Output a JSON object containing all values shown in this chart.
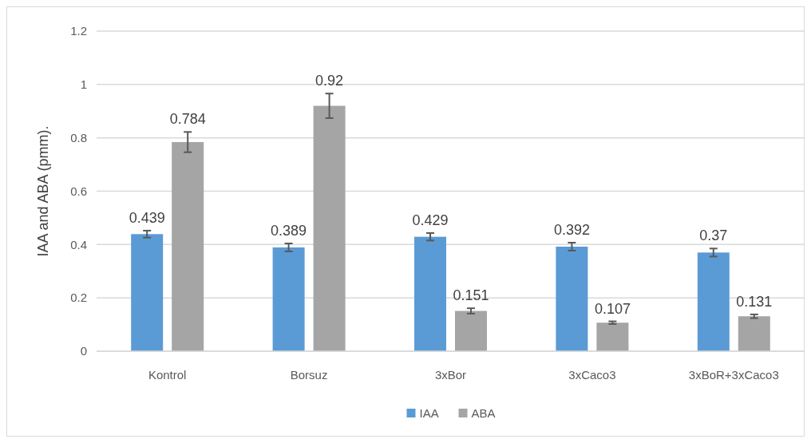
{
  "chart_data": {
    "type": "bar",
    "ylabel": "IAA and ABA (pmm).",
    "categories": [
      "Kontrol",
      "Borsuz",
      "3xBor",
      "3xCaco3",
      "3xBoR+3xCaco3"
    ],
    "series": [
      {
        "name": "IAA",
        "color": "#5b9bd5",
        "values": [
          0.439,
          0.389,
          0.429,
          0.392,
          0.37
        ],
        "errors": [
          0.013,
          0.015,
          0.014,
          0.015,
          0.015
        ]
      },
      {
        "name": "ABA",
        "color": "#a5a5a5",
        "values": [
          0.784,
          0.92,
          0.151,
          0.107,
          0.131
        ],
        "errors": [
          0.038,
          0.046,
          0.01,
          0.005,
          0.007
        ]
      }
    ],
    "ylim": [
      0,
      1.2
    ],
    "yticks": [
      0,
      0.2,
      0.4,
      0.6,
      0.8,
      1,
      1.2
    ],
    "grid": "y",
    "legend": "bottom",
    "data_labels": true
  }
}
